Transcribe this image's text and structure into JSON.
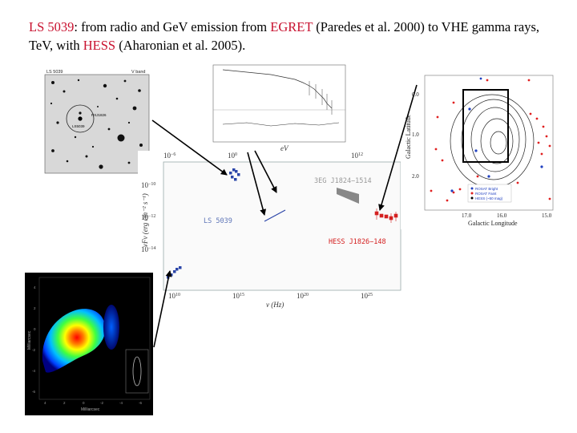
{
  "title": {
    "lead": "LS 5039",
    "t1": ": from radio and GeV emission from ",
    "egret": "EGRET",
    "t2": " (Paredes et al. 2000) to VHE gamma rays, TeV, with ",
    "hess": "HESS",
    "t3": " (Aharonian et al. 2005)."
  },
  "optical_panel": {
    "header_left": "LS 5039",
    "header_right": "V band",
    "label_source": "LS5039",
    "label_ref": "RXJ1826"
  },
  "sed_panel": {
    "top_tick_1": "10",
    "top_tick_1_exp": "−6",
    "top_tick_2": "10",
    "top_tick_2_exp": "0",
    "top_tick_3": "10",
    "top_tick_3_exp": "12",
    "top_unit": "eV",
    "y_tick_1": "10",
    "y_tick_1_exp": "−10",
    "y_tick_2": "10",
    "y_tick_2_exp": "−12",
    "y_tick_3": "10",
    "y_tick_3_exp": "−14",
    "ylabel": "νFν (erg cm⁻² s⁻¹)",
    "x_tick_1": "10",
    "x_tick_1_exp": "10",
    "x_tick_2": "10",
    "x_tick_2_exp": "15",
    "x_tick_3": "10",
    "x_tick_3_exp": "20",
    "x_tick_4": "10",
    "x_tick_4_exp": "25",
    "xlabel": "ν (Hz)",
    "label_egret": "3EG J1824−1514",
    "label_ls": "LS 5039",
    "label_hess": "HESS J1826−148"
  },
  "skymap_panel": {
    "ylabel": "Galactic Latitude",
    "xlabel": "Galactic Longitude",
    "y_ticks": [
      "0.0",
      "1.0",
      "2.0"
    ],
    "x_ticks": [
      "17.0",
      "16.0",
      "15.0"
    ],
    "legend": [
      "ROSAT Bright",
      "ROSAT Faint",
      "HESS (~50 mag)"
    ]
  },
  "radio_panel": {
    "ylabel": "Milliarcsec",
    "xlabel": "Milliarcsec",
    "x_ticks": [
      "4",
      "2",
      "0",
      "-2",
      "-4",
      "-6"
    ],
    "y_ticks": [
      "4",
      "2",
      "0",
      "-2",
      "-4",
      "-6"
    ]
  },
  "colors": {
    "accent_red": "#c8102e",
    "sed_blue": "#2b45a8",
    "hess_red": "#d42020",
    "egret_gray": "#888888"
  }
}
